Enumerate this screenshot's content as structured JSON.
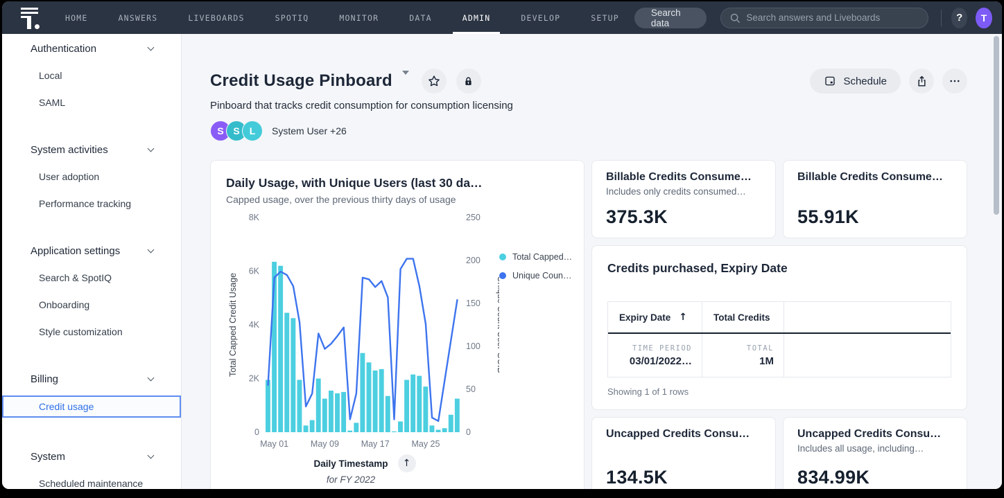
{
  "nav": {
    "tabs": [
      {
        "label": "HOME"
      },
      {
        "label": "ANSWERS"
      },
      {
        "label": "LIVEBOARDS"
      },
      {
        "label": "SPOTIQ"
      },
      {
        "label": "MONITOR"
      },
      {
        "label": "DATA"
      },
      {
        "label": "ADMIN",
        "active": true
      },
      {
        "label": "DEVELOP"
      },
      {
        "label": "SETUP"
      }
    ],
    "search_button_label": "Search data",
    "search_placeholder": "Search answers and Liveboards",
    "help_label": "?",
    "avatar": {
      "initial": "T",
      "color": "#7D5BF6"
    }
  },
  "sidebar": {
    "sections": [
      {
        "label": "Authentication",
        "items": [
          {
            "label": "Local"
          },
          {
            "label": "SAML"
          }
        ]
      },
      {
        "label": "System activities",
        "items": [
          {
            "label": "User adoption"
          },
          {
            "label": "Performance tracking"
          }
        ]
      },
      {
        "label": "Application settings",
        "items": [
          {
            "label": "Search & SpotIQ"
          },
          {
            "label": "Onboarding"
          },
          {
            "label": "Style customization"
          }
        ]
      },
      {
        "label": "Billing",
        "items": [
          {
            "label": "Credit usage",
            "selected": true
          }
        ]
      },
      {
        "label": "System",
        "items": [
          {
            "label": "Scheduled maintenance"
          }
        ]
      }
    ],
    "selected_item": "Credit usage"
  },
  "page_header": {
    "title": "Credit Usage Pinboard",
    "description": "Pinboard that tracks credit consumption for consumption licensing",
    "avatars": [
      {
        "initial": "S",
        "color": "#8A5CF6"
      },
      {
        "initial": "S",
        "color": "#35BCCB"
      },
      {
        "initial": "L",
        "color": "#44CBD9"
      }
    ],
    "authors_label": "System User +26",
    "schedule_label": "Schedule"
  },
  "kpi_cards": [
    {
      "title": "Billable Credits Consume…",
      "subtitle": "Includes only credits consumed…",
      "value": "375.3K"
    },
    {
      "title": "Billable Credits Consume…",
      "subtitle": "",
      "value": "55.91K"
    },
    {
      "title": "Uncapped Credits Consu…",
      "subtitle": "",
      "value": "134.5K"
    },
    {
      "title": "Uncapped Credits Consu…",
      "subtitle": "Includes all usage, including…",
      "value": "834.99K"
    }
  ],
  "table_card": {
    "title": "Credits purchased, Expiry Date",
    "columns": [
      {
        "label": "Expiry Date",
        "sort": "asc"
      },
      {
        "label": "Total Credits"
      }
    ],
    "sort_arrow": "↑",
    "row": {
      "col1_tag": "TIME PERIOD",
      "col1_value": "03/01/2022…",
      "col2_tag": "TOTAL",
      "col2_value": "1M"
    },
    "footer": "Showing 1 of 1 rows"
  },
  "chart_data": {
    "type": "combo-bar-line",
    "title": "Daily Usage, with Unique Users (last 30 da…",
    "subtitle": "Capped usage, over the previous thirty days of usage",
    "x_axis_title": "Daily Timestamp",
    "x_axis_subtitle": "for FY 2022",
    "x_tick_labels": [
      "May 01",
      "May 09",
      "May 17",
      "May 25"
    ],
    "x_tick_indices": [
      1,
      9,
      17,
      25
    ],
    "left_axis": {
      "label": "Total Capped Credit Usage",
      "ticks": [
        "0",
        "2K",
        "4K",
        "6K",
        "8K"
      ],
      "max": 8000
    },
    "right_axis": {
      "label": "Unique Count User GUID",
      "ticks": [
        "0",
        "50",
        "100",
        "150",
        "200",
        "250"
      ],
      "max": 250
    },
    "grid": false,
    "legend_position": "right-top",
    "series": [
      {
        "name": "Total Capped…",
        "type": "bar",
        "axis": "left",
        "color": "#4CCFE0",
        "values": [
          1950,
          6350,
          6200,
          4450,
          4250,
          1950,
          250,
          450,
          2000,
          1250,
          1550,
          1450,
          1500,
          60,
          350,
          2950,
          2600,
          2300,
          2350,
          1350,
          30,
          400,
          1950,
          2150,
          2100,
          1700,
          250,
          90,
          150,
          650,
          1250
        ]
      },
      {
        "name": "Unique Coun…",
        "type": "line",
        "axis": "right",
        "color": "#3D74EE",
        "values": [
          55,
          180,
          187,
          183,
          170,
          128,
          30,
          45,
          115,
          97,
          103,
          112,
          122,
          15,
          45,
          180,
          178,
          169,
          176,
          157,
          15,
          190,
          202,
          202,
          170,
          126,
          17,
          13,
          60,
          107,
          154
        ]
      }
    ],
    "up_arrow": "↑"
  }
}
